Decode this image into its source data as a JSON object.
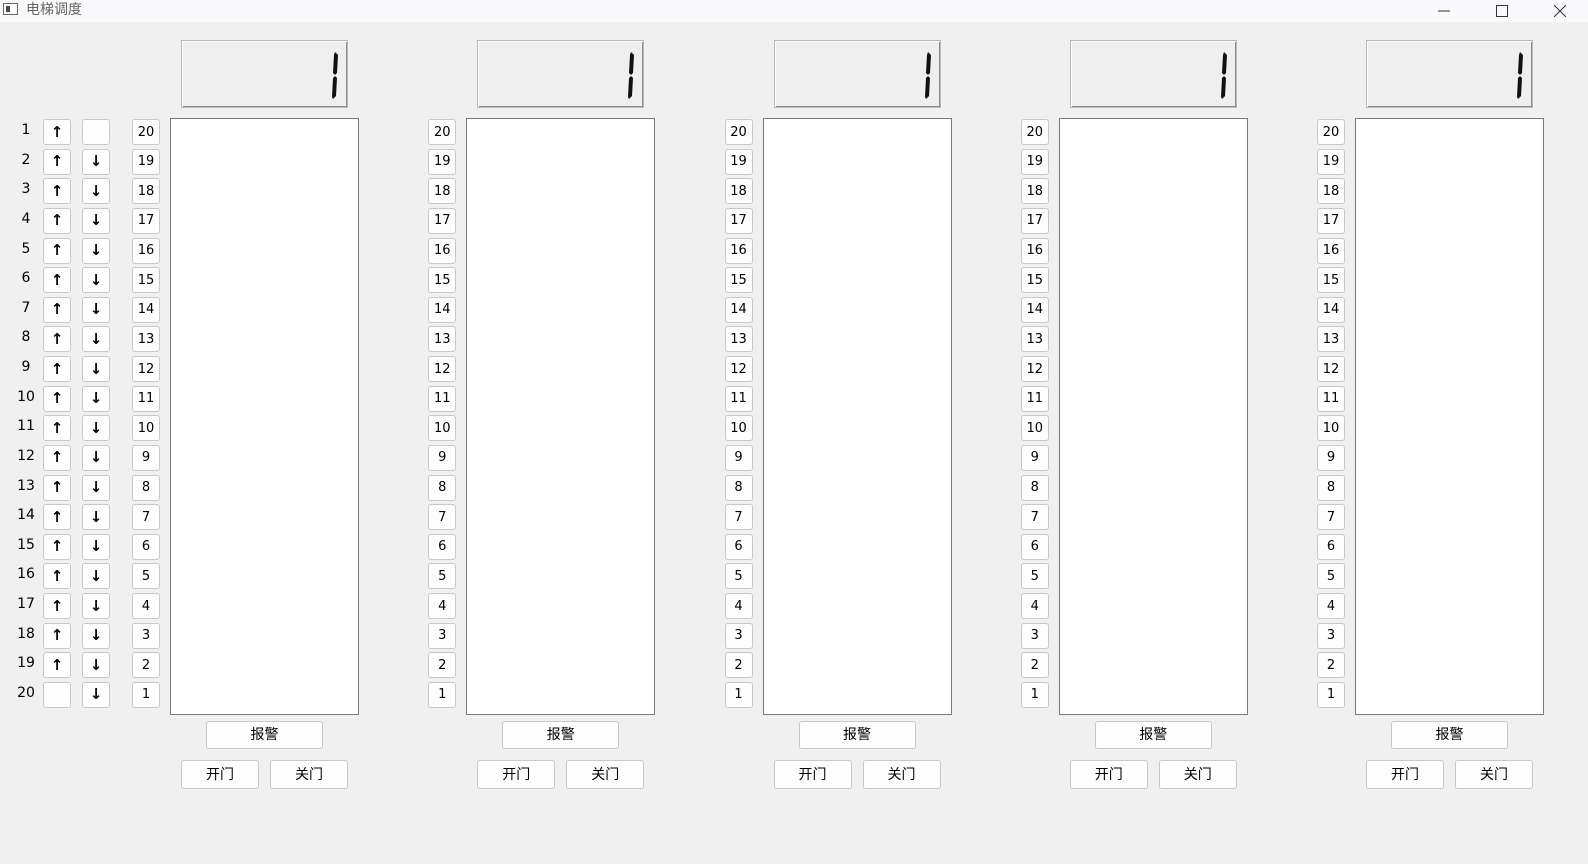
{
  "window": {
    "title": "电梯调度",
    "minimize_icon": "minimize-icon",
    "maximize_icon": "maximize-icon",
    "close_icon": "close-icon"
  },
  "hall_calls": {
    "floors": [
      "1",
      "2",
      "3",
      "4",
      "5",
      "6",
      "7",
      "8",
      "9",
      "10",
      "11",
      "12",
      "13",
      "14",
      "15",
      "16",
      "17",
      "18",
      "19",
      "20"
    ],
    "up_symbol": "↑",
    "down_symbol": "↓"
  },
  "elevators": [
    {
      "display": "1",
      "floor_buttons": [
        "20",
        "19",
        "18",
        "17",
        "16",
        "15",
        "14",
        "13",
        "12",
        "11",
        "10",
        "9",
        "8",
        "7",
        "6",
        "5",
        "4",
        "3",
        "2",
        "1"
      ],
      "alarm": "报警",
      "open": "开门",
      "close": "关门"
    },
    {
      "display": "1",
      "floor_buttons": [
        "20",
        "19",
        "18",
        "17",
        "16",
        "15",
        "14",
        "13",
        "12",
        "11",
        "10",
        "9",
        "8",
        "7",
        "6",
        "5",
        "4",
        "3",
        "2",
        "1"
      ],
      "alarm": "报警",
      "open": "开门",
      "close": "关门"
    },
    {
      "display": "1",
      "floor_buttons": [
        "20",
        "19",
        "18",
        "17",
        "16",
        "15",
        "14",
        "13",
        "12",
        "11",
        "10",
        "9",
        "8",
        "7",
        "6",
        "5",
        "4",
        "3",
        "2",
        "1"
      ],
      "alarm": "报警",
      "open": "开门",
      "close": "关门"
    },
    {
      "display": "1",
      "floor_buttons": [
        "20",
        "19",
        "18",
        "17",
        "16",
        "15",
        "14",
        "13",
        "12",
        "11",
        "10",
        "9",
        "8",
        "7",
        "6",
        "5",
        "4",
        "3",
        "2",
        "1"
      ],
      "alarm": "报警",
      "open": "开门",
      "close": "关门"
    },
    {
      "display": "1",
      "floor_buttons": [
        "20",
        "19",
        "18",
        "17",
        "16",
        "15",
        "14",
        "13",
        "12",
        "11",
        "10",
        "9",
        "8",
        "7",
        "6",
        "5",
        "4",
        "3",
        "2",
        "1"
      ],
      "alarm": "报警",
      "open": "开门",
      "close": "关门"
    }
  ]
}
